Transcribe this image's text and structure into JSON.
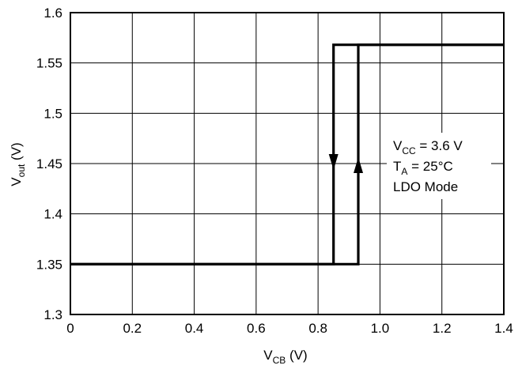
{
  "chart_data": {
    "type": "line",
    "xlabel": {
      "main": "V",
      "sub": "CB",
      "unit": " (V)"
    },
    "ylabel": {
      "main": "V",
      "sub": "out",
      "unit": " (V)"
    },
    "xlim": [
      0,
      1.4
    ],
    "ylim": [
      1.3,
      1.6
    ],
    "grid": true,
    "xticks": [
      0,
      0.2,
      0.4,
      0.6,
      0.8,
      1.0,
      1.2,
      1.4
    ],
    "xtick_labels": [
      "0",
      "0.2",
      "0.4",
      "0.6",
      "0.8",
      "1.0",
      "1.2",
      "1.4"
    ],
    "yticks": [
      1.3,
      1.35,
      1.4,
      1.45,
      1.5,
      1.55,
      1.6
    ],
    "ytick_labels": [
      "1.3",
      "1.35",
      "1.4",
      "1.45",
      "1.5",
      "1.55",
      "1.6"
    ],
    "series": [
      {
        "direction": "falling",
        "x": [
          1.4,
          0.85,
          0.85,
          0
        ],
        "y": [
          1.568,
          1.568,
          1.35,
          1.35
        ],
        "arrow": {
          "x": 0.85,
          "y": 1.45,
          "direction": "down"
        }
      },
      {
        "direction": "rising",
        "x": [
          0,
          0.93,
          0.93,
          1.4
        ],
        "y": [
          1.35,
          1.35,
          1.568,
          1.568
        ],
        "arrow": {
          "x": 0.93,
          "y": 1.45,
          "direction": "up"
        }
      }
    ],
    "annotations": [
      {
        "main": "V",
        "sub": "CC",
        "rest": " = 3.6 V"
      },
      {
        "main": "T",
        "sub": "A",
        "rest": " = 25°C"
      },
      {
        "main": "LDO Mode",
        "sub": "",
        "rest": ""
      }
    ]
  }
}
